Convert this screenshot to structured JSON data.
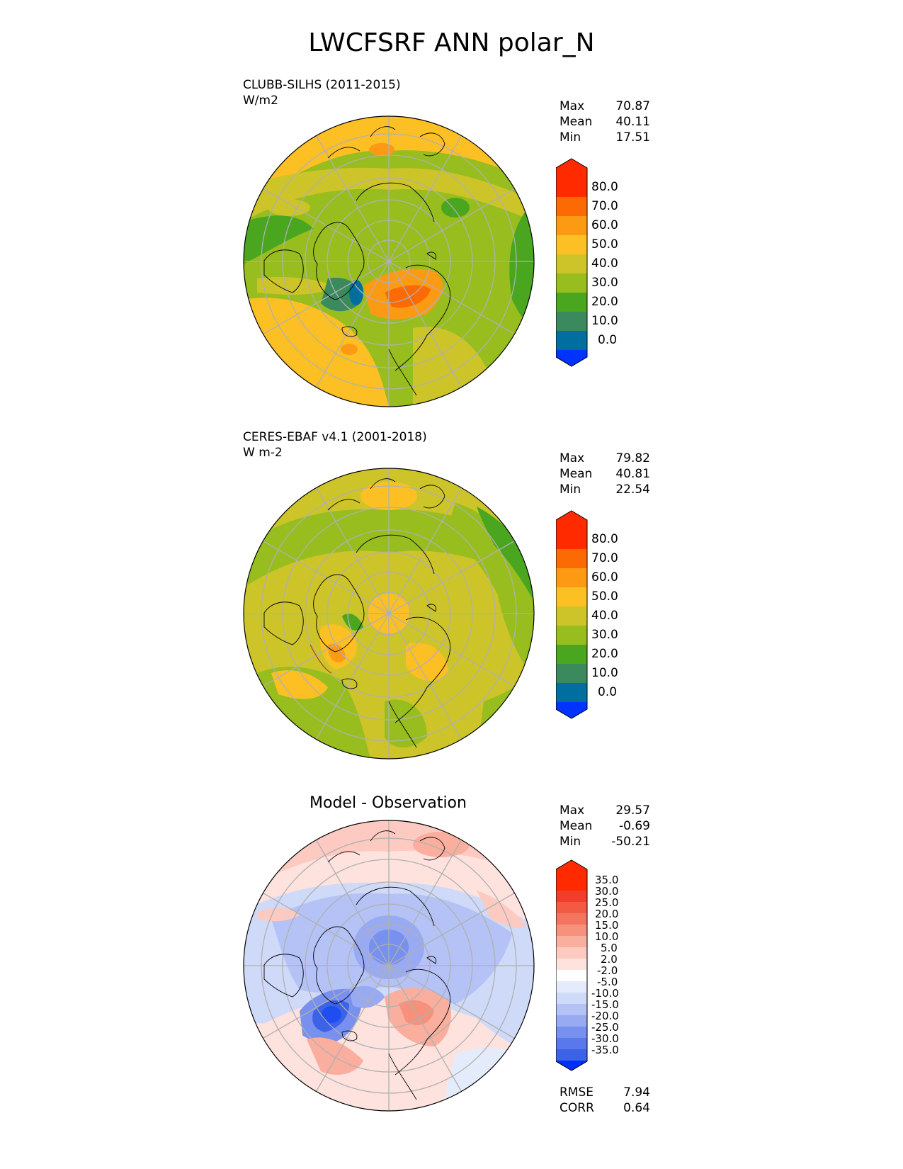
{
  "title": "LWCFSRF ANN polar_N",
  "panels": [
    {
      "subtitle_line1": "CLUBB-SILHS (2011-2015)",
      "subtitle_line2": "W/m2",
      "stats": [
        {
          "label": "Max",
          "value": "70.87"
        },
        {
          "label": "Mean",
          "value": "40.11"
        },
        {
          "label": "Min",
          "value": "17.51"
        }
      ],
      "colorbar_labels": [
        "80.0",
        "70.0",
        "60.0",
        "50.0",
        "40.0",
        "30.0",
        "20.0",
        "10.0",
        "0.0"
      ]
    },
    {
      "subtitle_line1": "CERES-EBAF v4.1 (2001-2018)",
      "subtitle_line2": "W m-2",
      "stats": [
        {
          "label": "Max",
          "value": "79.82"
        },
        {
          "label": "Mean",
          "value": "40.81"
        },
        {
          "label": "Min",
          "value": "22.54"
        }
      ],
      "colorbar_labels": [
        "80.0",
        "70.0",
        "60.0",
        "50.0",
        "40.0",
        "30.0",
        "20.0",
        "10.0",
        "0.0"
      ]
    },
    {
      "center_title": "Model - Observation",
      "stats": [
        {
          "label": "Max",
          "value": "29.57"
        },
        {
          "label": "Mean",
          "value": "-0.69"
        },
        {
          "label": "Min",
          "value": "-50.21"
        }
      ],
      "colorbar_labels": [
        "35.0",
        "30.0",
        "25.0",
        "20.0",
        "15.0",
        "10.0",
        "5.0",
        "2.0",
        "-2.0",
        "-5.0",
        "-10.0",
        "-15.0",
        "-20.0",
        "-25.0",
        "-30.0",
        "-35.0"
      ],
      "bottom_stats": [
        {
          "label": "RMSE",
          "value": "7.94"
        },
        {
          "label": "CORR",
          "value": "0.64"
        }
      ]
    }
  ],
  "colors": {
    "abs_scale": [
      "#0033ff",
      "#006e9e",
      "#3a8a5e",
      "#4aa61e",
      "#97bd1e",
      "#cdc42a",
      "#fdc024",
      "#fc9a14",
      "#fc6a05",
      "#ff2a00"
    ],
    "diff_scale": [
      "#0030f8",
      "#1f4ef0",
      "#3c62e8",
      "#5878ec",
      "#7890ee",
      "#98aaf2",
      "#b4c2f6",
      "#cfd9f8",
      "#e4ebfb",
      "#ffffff",
      "#fde2de",
      "#fccac0",
      "#f9ae9e",
      "#f6927c",
      "#f37560",
      "#f25a44",
      "#f13e2a",
      "#ff2a00"
    ],
    "grid": "#b0b0b0",
    "coast": "#000000"
  }
}
